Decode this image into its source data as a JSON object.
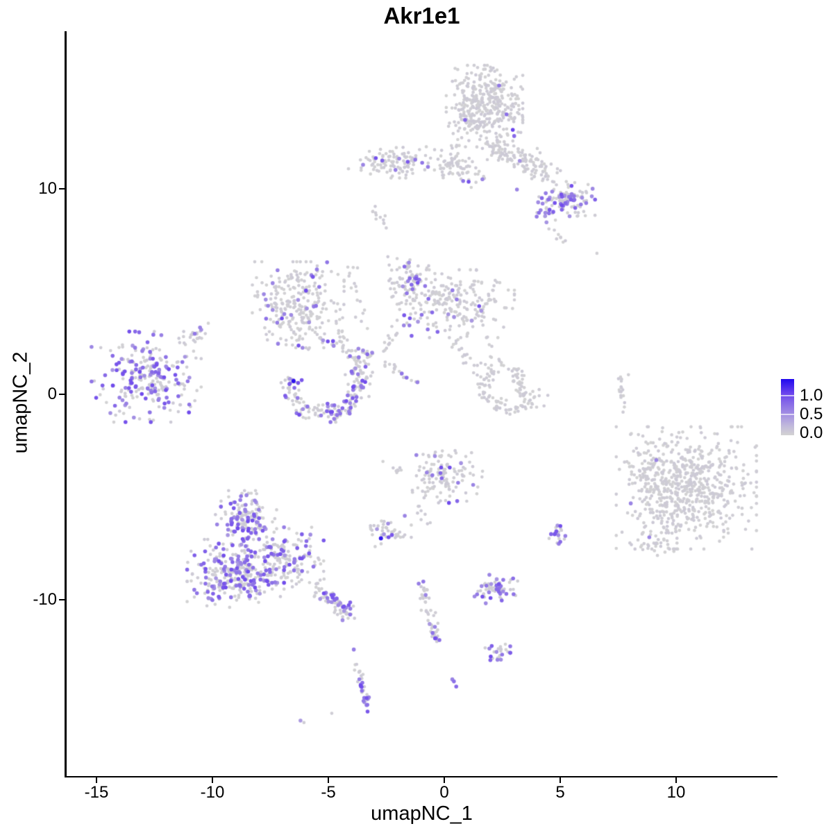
{
  "title": "Akr1e1",
  "axes": {
    "x": {
      "label": "umapNC_1",
      "tick_labels": [
        "-15",
        "-10",
        "-5",
        "0",
        "5",
        "10"
      ]
    },
    "y": {
      "label": "umapNC_2",
      "tick_labels": [
        "10",
        "0",
        "-10"
      ]
    }
  },
  "legend": {
    "labels": [
      "1.0",
      "0.5",
      "0.0"
    ]
  },
  "colors": {
    "low": "#d3d3d3",
    "high": "#2008ee",
    "background": "#ffffff",
    "axis": "#000000"
  },
  "chart_data": {
    "type": "scatter",
    "title": "Akr1e1",
    "xlabel": "umapNC_1",
    "ylabel": "umapNC_2",
    "xlim": [
      -16.32,
      14.38
    ],
    "ylim": [
      -18.55,
      17.64
    ],
    "x_ticks": [
      -15,
      -10,
      -5,
      0,
      5,
      10
    ],
    "y_ticks": [
      10,
      0,
      -10
    ],
    "grid": false,
    "legend_position": "right",
    "value_range": [
      0,
      1.4
    ],
    "gradient": [
      [
        0,
        "#d3d3d3"
      ],
      [
        0.18,
        "#bfb7dc"
      ],
      [
        0.36,
        "#a592e2"
      ],
      [
        0.55,
        "#8a6ee7"
      ],
      [
        0.75,
        "#6a43ed"
      ],
      [
        1,
        "#2008ee"
      ]
    ],
    "clusters": [
      {
        "name": "top-blob",
        "shape": "blob",
        "cx": 1.74,
        "cy": 14.0,
        "rx": 1.5,
        "ry": 1.8,
        "n": 380,
        "pf": 0.012
      },
      {
        "name": "top-blob-tail",
        "shape": "trail",
        "x1": 0.55,
        "y1": 12.25,
        "x2": 0.1,
        "y2": 10.7,
        "w": 0.3,
        "n": 22,
        "pf": 0.02
      },
      {
        "name": "upper-band-left",
        "shape": "blob",
        "cx": -2.2,
        "cy": 11.3,
        "rx": 1.9,
        "ry": 0.72,
        "n": 110,
        "pf": 0.03
      },
      {
        "name": "upper-band-right",
        "shape": "trail",
        "x1": -0.1,
        "y1": 11.3,
        "x2": 1.7,
        "y2": 10.5,
        "w": 0.55,
        "n": 50,
        "pf": 0.03
      },
      {
        "name": "upper-right-branch",
        "shape": "trail",
        "x1": 1.9,
        "y1": 12.2,
        "x2": 4.6,
        "y2": 10.6,
        "w": 0.6,
        "n": 130,
        "pf": 0.02
      },
      {
        "name": "upper-right-lobe",
        "shape": "blob",
        "cx": 5.3,
        "cy": 9.4,
        "rx": 1.1,
        "ry": 0.85,
        "n": 100,
        "pf": 0.28
      },
      {
        "name": "upper-right-purple-knot",
        "shape": "blob",
        "cx": 4.4,
        "cy": 8.85,
        "rx": 0.45,
        "ry": 0.45,
        "n": 16,
        "pf": 0.72
      },
      {
        "name": "upper-right-spur",
        "shape": "trail",
        "x1": 4.6,
        "y1": 8.2,
        "x2": 5.2,
        "y2": 7.3,
        "w": 0.2,
        "n": 8,
        "pf": 0
      },
      {
        "name": "small-strip",
        "shape": "trail",
        "x1": -3.05,
        "y1": 8.95,
        "x2": -2.45,
        "y2": 8.25,
        "w": 0.2,
        "n": 12,
        "pf": 0
      },
      {
        "name": "midleft-blob",
        "shape": "blob",
        "cx": -6.3,
        "cy": 4.35,
        "rx": 1.8,
        "ry": 1.9,
        "n": 260,
        "pf": 0.1
      },
      {
        "name": "midleft-trail",
        "shape": "trail",
        "x1": -4.7,
        "y1": 2.7,
        "x2": -3.2,
        "y2": 1.1,
        "w": 0.35,
        "n": 35,
        "pf": 0.06
      },
      {
        "name": "midleft-upper-trail",
        "shape": "trail",
        "x1": -4.1,
        "y1": 6.7,
        "x2": -3.5,
        "y2": 3.2,
        "w": 0.25,
        "n": 16,
        "pf": 0.03
      },
      {
        "name": "center-blob",
        "shape": "blob",
        "cx": 0.5,
        "cy": 4.4,
        "rx": 2.3,
        "ry": 1.5,
        "n": 230,
        "pf": 0.07
      },
      {
        "name": "center-top-lobe",
        "shape": "blob",
        "cx": -1.55,
        "cy": 5.6,
        "rx": 0.8,
        "ry": 1.1,
        "n": 70,
        "pf": 0.08
      },
      {
        "name": "center-trail-a",
        "shape": "trail",
        "x1": 0.4,
        "y1": 2.8,
        "x2": 1.3,
        "y2": 1.1,
        "w": 0.3,
        "n": 20,
        "pf": 0
      },
      {
        "name": "center-curve-b1",
        "shape": "trail",
        "x1": -1.95,
        "y1": 3.1,
        "x2": -2.6,
        "y2": 2.2,
        "w": 0.25,
        "n": 14,
        "pf": 0
      },
      {
        "name": "center-curve-b2",
        "shape": "trail",
        "x1": -2.6,
        "y1": 1.55,
        "x2": -1.05,
        "y2": 0.45,
        "w": 0.2,
        "n": 18,
        "pf": 0.08
      },
      {
        "name": "center-trail-c",
        "shape": "trail",
        "x1": 1.9,
        "y1": 2.6,
        "x2": 2.5,
        "y2": 1.3,
        "w": 0.25,
        "n": 10,
        "pf": 0
      },
      {
        "name": "left-cluster",
        "shape": "blob",
        "cx": -12.85,
        "cy": 0.85,
        "rx": 2.15,
        "ry": 2.0,
        "n": 250,
        "pf": 0.42
      },
      {
        "name": "left-cluster-tail",
        "shape": "trail",
        "x1": -11.3,
        "y1": 2.45,
        "x2": -10.2,
        "y2": 3.2,
        "w": 0.3,
        "n": 22,
        "pf": 0.18
      },
      {
        "name": "crescent-left",
        "shape": "arc",
        "cx": -5.1,
        "cy": 0.45,
        "r": 1.45,
        "rw": 0.45,
        "a0": 165,
        "a1": 395,
        "sy": 0.95,
        "n": 170,
        "pf": 0.32
      },
      {
        "name": "crescent-left-top",
        "shape": "blob",
        "cx": -5.5,
        "cy": 2.6,
        "rx": 1.2,
        "ry": 0.5,
        "n": 18,
        "pf": 0.04
      },
      {
        "name": "crescent-left-spur",
        "shape": "trail",
        "x1": -3.65,
        "y1": 2.3,
        "x2": -3.1,
        "y2": 1.8,
        "w": 0.25,
        "n": 8,
        "pf": 0.25
      },
      {
        "name": "crescent-right",
        "shape": "arc",
        "cx": 3.0,
        "cy": 0.4,
        "r": 1.25,
        "rw": 0.4,
        "a0": 130,
        "a1": 355,
        "sy": 0.9,
        "n": 85,
        "pf": 0
      },
      {
        "name": "right-lobe-diag",
        "shape": "trail",
        "x1": 3.05,
        "y1": 1.3,
        "x2": 3.5,
        "y2": -0.1,
        "w": 0.3,
        "n": 40,
        "pf": 0
      },
      {
        "name": "tiny-strip",
        "shape": "trail",
        "x1": 7.55,
        "y1": 0.85,
        "x2": 7.75,
        "y2": -0.85,
        "w": 0.18,
        "n": 16,
        "pf": 0
      },
      {
        "name": "right-cluster",
        "shape": "blob",
        "cx": 10.45,
        "cy": -4.55,
        "rx": 2.75,
        "ry": 2.7,
        "n": 640,
        "pf": 0.002
      },
      {
        "name": "right-cluster-fringe",
        "shape": "blob",
        "cx": 8.55,
        "cy": -3.6,
        "rx": 0.7,
        "ry": 1.5,
        "n": 40,
        "pf": 0
      },
      {
        "name": "right-cluster-spur",
        "shape": "blob",
        "cx": 9.0,
        "cy": -7.3,
        "rx": 0.95,
        "ry": 0.55,
        "n": 30,
        "pf": 0
      },
      {
        "name": "center-low-blob",
        "shape": "blob",
        "cx": -0.05,
        "cy": -3.9,
        "rx": 1.55,
        "ry": 1.25,
        "n": 120,
        "pf": 0.09
      },
      {
        "name": "center-low-left-trail",
        "shape": "trail",
        "x1": -2.7,
        "y1": -3.3,
        "x2": -1.8,
        "y2": -3.7,
        "w": 0.2,
        "n": 8,
        "pf": 0
      },
      {
        "name": "center-low-below",
        "shape": "trail",
        "x1": -1.3,
        "y1": -5.3,
        "x2": -0.3,
        "y2": -6.6,
        "w": 0.25,
        "n": 8,
        "pf": 0.15
      },
      {
        "name": "small-mid-cluster",
        "shape": "blob",
        "cx": -2.3,
        "cy": -6.75,
        "rx": 0.8,
        "ry": 0.6,
        "n": 40,
        "pf": 0.12
      },
      {
        "name": "bottomleft-upper",
        "shape": "blob",
        "cx": -8.55,
        "cy": -6.0,
        "rx": 1.2,
        "ry": 1.2,
        "n": 150,
        "pf": 0.38
      },
      {
        "name": "bottomleft-main",
        "shape": "blob",
        "cx": -9.0,
        "cy": -8.7,
        "rx": 1.9,
        "ry": 1.5,
        "n": 300,
        "pf": 0.42
      },
      {
        "name": "bottomleft-right",
        "shape": "blob",
        "cx": -6.85,
        "cy": -8.0,
        "rx": 1.5,
        "ry": 1.4,
        "n": 150,
        "pf": 0.28
      },
      {
        "name": "bottomleft-tail",
        "shape": "trail",
        "x1": -5.6,
        "y1": -9.3,
        "x2": -3.9,
        "y2": -10.8,
        "w": 0.4,
        "n": 75,
        "pf": 0.32
      },
      {
        "name": "small-right-cluster",
        "shape": "blob",
        "cx": 5.0,
        "cy": -6.95,
        "rx": 0.45,
        "ry": 0.52,
        "n": 20,
        "pf": 0.6
      },
      {
        "name": "low-mid-cluster",
        "shape": "blob",
        "cx": 2.3,
        "cy": -9.55,
        "rx": 0.9,
        "ry": 0.55,
        "n": 55,
        "pf": 0.42
      },
      {
        "name": "vertical-trail",
        "shape": "trail",
        "x1": -0.95,
        "y1": -9.35,
        "x2": -0.3,
        "y2": -12.2,
        "w": 0.25,
        "n": 40,
        "pf": 0.15
      },
      {
        "name": "small-low-cluster",
        "shape": "blob",
        "cx": 2.3,
        "cy": -12.55,
        "rx": 0.5,
        "ry": 0.45,
        "n": 22,
        "pf": 0.25
      },
      {
        "name": "bottom-strip-upper",
        "shape": "trail",
        "x1": -3.9,
        "y1": -13.05,
        "x2": -3.5,
        "y2": -14.0,
        "w": 0.18,
        "n": 12,
        "pf": 0.3
      },
      {
        "name": "bottom-strip-lower",
        "shape": "trail",
        "x1": -3.5,
        "y1": -14.05,
        "x2": -3.3,
        "y2": -15.25,
        "w": 0.18,
        "n": 18,
        "pf": 0.55
      }
    ],
    "highlight_points": [
      {
        "x": 2.37,
        "y": 15.0,
        "v": 0.7
      },
      {
        "x": 2.69,
        "y": 13.6,
        "v": 0.75
      },
      {
        "x": 2.96,
        "y": 12.85,
        "v": 1.05
      },
      {
        "x": 3.02,
        "y": 12.55,
        "v": 0.8
      },
      {
        "x": -3.5,
        "y": 11.15,
        "v": 0.6
      },
      {
        "x": -2.1,
        "y": 10.9,
        "v": 0.65
      },
      {
        "x": -1.25,
        "y": 11.4,
        "v": 0.7
      },
      {
        "x": -0.95,
        "y": 11.25,
        "v": 0.7
      },
      {
        "x": -0.7,
        "y": 11.05,
        "v": 0.65
      },
      {
        "x": 1.65,
        "y": 10.45,
        "v": 0.6
      },
      {
        "x": 3.14,
        "y": 9.95,
        "v": 0.6
      },
      {
        "x": 5.45,
        "y": 9.6,
        "v": 0.7
      },
      {
        "x": 5.62,
        "y": 9.45,
        "v": 0.75
      },
      {
        "x": 5.3,
        "y": 9.25,
        "v": 0.65
      },
      {
        "x": 5.95,
        "y": 9.55,
        "v": 0.55
      },
      {
        "x": -7.4,
        "y": 5.4,
        "v": 0.6
      },
      {
        "x": -7.7,
        "y": 4.6,
        "v": 0.55
      },
      {
        "x": -7.6,
        "y": 4.3,
        "v": 0.6
      },
      {
        "x": -7.4,
        "y": 4.1,
        "v": 0.55
      },
      {
        "x": -6.9,
        "y": 3.9,
        "v": 0.6
      },
      {
        "x": -6.6,
        "y": 3.85,
        "v": 0.55
      },
      {
        "x": -1.26,
        "y": 5.64,
        "v": 0.7
      },
      {
        "x": -1.56,
        "y": 5.5,
        "v": 0.6
      },
      {
        "x": -1.08,
        "y": 5.57,
        "v": 0.75
      },
      {
        "x": -1.2,
        "y": 5.72,
        "v": 0.65
      },
      {
        "x": -1.74,
        "y": 3.35,
        "v": 0.6
      },
      {
        "x": -1.5,
        "y": 3.35,
        "v": 0.65
      },
      {
        "x": -3.11,
        "y": 2.02,
        "v": 0.6
      },
      {
        "x": -1.83,
        "y": 1.01,
        "v": 0.7
      },
      {
        "x": -1.62,
        "y": 0.81,
        "v": 0.75
      },
      {
        "x": -13.6,
        "y": 0.3,
        "v": 0.9
      },
      {
        "x": -12.4,
        "y": 1.5,
        "v": 0.85
      },
      {
        "x": -13.0,
        "y": 1.3,
        "v": 0.8
      },
      {
        "x": -6.5,
        "y": 0.64,
        "v": 1.35
      },
      {
        "x": 9.15,
        "y": -3.2,
        "v": 0.6
      },
      {
        "x": 8.05,
        "y": -5.3,
        "v": 0.6
      },
      {
        "x": 8.85,
        "y": -6.95,
        "v": 0.6
      },
      {
        "x": -1.2,
        "y": -2.95,
        "v": 0.6
      },
      {
        "x": -0.4,
        "y": -3.0,
        "v": 0.55
      },
      {
        "x": -0.75,
        "y": -3.8,
        "v": 0.6
      },
      {
        "x": 0.6,
        "y": -4.3,
        "v": 0.65
      },
      {
        "x": 1.25,
        "y": -4.4,
        "v": 0.6
      },
      {
        "x": -1.7,
        "y": -5.9,
        "v": 0.6
      },
      {
        "x": -2.73,
        "y": -7.0,
        "v": 1.3
      },
      {
        "x": -2.4,
        "y": -6.95,
        "v": 0.95
      },
      {
        "x": -2.9,
        "y": -6.55,
        "v": 0.45
      },
      {
        "x": -2.6,
        "y": -6.8,
        "v": 0.5
      },
      {
        "x": -10.2,
        "y": -9.6,
        "v": 0.8
      },
      {
        "x": -10.0,
        "y": -10.0,
        "v": 0.75
      },
      {
        "x": -9.7,
        "y": -9.9,
        "v": 0.7
      },
      {
        "x": -10.3,
        "y": -9.2,
        "v": 0.75
      },
      {
        "x": -9.2,
        "y": -9.07,
        "v": 1.0
      },
      {
        "x": 1.95,
        "y": -8.77,
        "v": 0.6
      },
      {
        "x": 2.0,
        "y": -9.9,
        "v": 0.95
      },
      {
        "x": -1.1,
        "y": -9.2,
        "v": 0.65
      },
      {
        "x": -0.9,
        "y": -9.1,
        "v": 0.7
      },
      {
        "x": -0.8,
        "y": -9.75,
        "v": 0.6
      },
      {
        "x": -0.4,
        "y": -11.3,
        "v": 0.6
      },
      {
        "x": -0.35,
        "y": -11.85,
        "v": 0.7
      },
      {
        "x": 1.95,
        "y": -12.35,
        "v": 0.6
      },
      {
        "x": 2.5,
        "y": -12.65,
        "v": 0.7
      },
      {
        "x": 2.3,
        "y": -12.9,
        "v": 0.6
      },
      {
        "x": -3.9,
        "y": -12.4,
        "v": 0.65
      },
      {
        "x": -3.6,
        "y": -14.1,
        "v": 0.6
      },
      {
        "x": -3.55,
        "y": -14.4,
        "v": 0.75
      },
      {
        "x": -3.45,
        "y": -14.75,
        "v": 0.7
      },
      {
        "x": -3.35,
        "y": -15.1,
        "v": 0.65
      },
      {
        "x": 0.42,
        "y": -13.95,
        "v": 0.75
      },
      {
        "x": 0.52,
        "y": -14.2,
        "v": 0.8
      },
      {
        "x": 0.35,
        "y": -13.85,
        "v": 0.6
      },
      {
        "x": -6.2,
        "y": -15.85,
        "v": 0.45
      },
      {
        "x": -6.05,
        "y": -15.95,
        "v": 0.05
      },
      {
        "x": -4.85,
        "y": -15.5,
        "v": 0.05
      },
      {
        "x": 6.59,
        "y": 6.85,
        "v": 0.03
      },
      {
        "x": 7.95,
        "y": 0.95,
        "v": 0.03
      }
    ]
  }
}
